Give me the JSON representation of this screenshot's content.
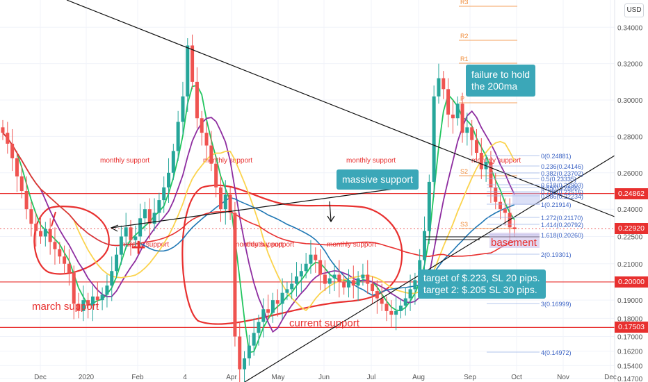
{
  "currency_button": "USD",
  "chart_data": {
    "type": "candlestick",
    "title": "",
    "price_axis": {
      "min": 0.145,
      "max": 0.355,
      "ticks": [
        0.147,
        0.154,
        0.162,
        0.17,
        0.18,
        0.19,
        0.2,
        0.21,
        0.225,
        0.24,
        0.26,
        0.28,
        0.3,
        0.32,
        0.34
      ]
    },
    "time_axis_labels": [
      "Dec",
      "2020",
      "Feb",
      "4",
      "Apr",
      "May",
      "Jun",
      "Jul",
      "Aug",
      "Sep",
      "Oct",
      "Nov",
      "Dec"
    ],
    "price_tags": [
      {
        "value": "0.24862",
        "color": "#e8302f"
      },
      {
        "value": "0.22920",
        "color": "#e8302f"
      },
      {
        "value": "0.20000",
        "color": "#e8302f"
      },
      {
        "value": "0.17503",
        "color": "#e8302f"
      }
    ],
    "horizontal_levels": [
      0.24862,
      0.2,
      0.17503
    ],
    "monthly_support_labels": [
      "monthly support",
      "monthly support",
      "monthly support",
      "monthly support",
      "monthly support",
      "monthly support",
      "monthly support",
      "monthly support"
    ],
    "pivots": [
      "R3",
      "R2",
      "R1",
      "P",
      "S2",
      "S3"
    ],
    "fibonacci": [
      {
        "ratio": "0",
        "value": "0.24881"
      },
      {
        "ratio": "0.236",
        "value": "0.24146"
      },
      {
        "ratio": "0.382",
        "value": "0.23702"
      },
      {
        "ratio": "0.5",
        "value": "0.23335"
      },
      {
        "ratio": "0.618",
        "value": "0.22903"
      },
      {
        "ratio": "0.65",
        "value": "0.22866"
      },
      {
        "ratio": "0.786",
        "value": "0.22516"
      },
      {
        "ratio": "0.886",
        "value": "0.22234"
      },
      {
        "ratio": "1",
        "value": "0.21914"
      },
      {
        "ratio": "1.272",
        "value": "0.21170"
      },
      {
        "ratio": "1.414",
        "value": "0.20792"
      },
      {
        "ratio": "1.618",
        "value": "0.20260"
      },
      {
        "ratio": "2",
        "value": "0.19301"
      },
      {
        "ratio": "3",
        "value": "0.16999"
      },
      {
        "ratio": "4",
        "value": "0.14972"
      }
    ],
    "annotations": {
      "march_support": "march support",
      "current_support": "current support",
      "basement": "basement",
      "plus": "+",
      "massive_support": "massive support",
      "failure_callout": "failure to hold\nthe 200ma",
      "target_callout_1": "target of $.223, SL 20 pips.",
      "target_callout_2": "target 2: $.205 SL  30 pips."
    },
    "moving_averages": [
      {
        "color": "#22c55e"
      },
      {
        "color": "#8e2da0"
      },
      {
        "color": "#fbd34d"
      },
      {
        "color": "#1f77b4"
      },
      {
        "color": "#e8302f"
      }
    ],
    "candle_colors": {
      "up": "#26a69a",
      "down": "#ef5350"
    },
    "series": [
      {
        "name": "price",
        "values": [
          0.282,
          0.276,
          0.268,
          0.258,
          0.25,
          0.24,
          0.232,
          0.228,
          0.225,
          0.229,
          0.222,
          0.218,
          0.214,
          0.21,
          0.205,
          0.188,
          0.184,
          0.19,
          0.187,
          0.192,
          0.19,
          0.193,
          0.198,
          0.206,
          0.215,
          0.225,
          0.23,
          0.223,
          0.225,
          0.235,
          0.24,
          0.232,
          0.238,
          0.245,
          0.252,
          0.26,
          0.272,
          0.288,
          0.302,
          0.33,
          0.31,
          0.29,
          0.282,
          0.275,
          0.265,
          0.252,
          0.24,
          0.248,
          0.238,
          0.17,
          0.152,
          0.158,
          0.165,
          0.172,
          0.178,
          0.185,
          0.183,
          0.19,
          0.188,
          0.194,
          0.196,
          0.199,
          0.203,
          0.206,
          0.21,
          0.215,
          0.212,
          0.204,
          0.199,
          0.202,
          0.204,
          0.2,
          0.197,
          0.201,
          0.198,
          0.202,
          0.204,
          0.199,
          0.195,
          0.191,
          0.188,
          0.184,
          0.182,
          0.184,
          0.187,
          0.191,
          0.196,
          0.201,
          0.212,
          0.228,
          0.255,
          0.302,
          0.312,
          0.306,
          0.292,
          0.29,
          0.298,
          0.282,
          0.285,
          0.278,
          0.271,
          0.262,
          0.266,
          0.252,
          0.244,
          0.24,
          0.238,
          0.23,
          0.229
        ]
      }
    ]
  }
}
